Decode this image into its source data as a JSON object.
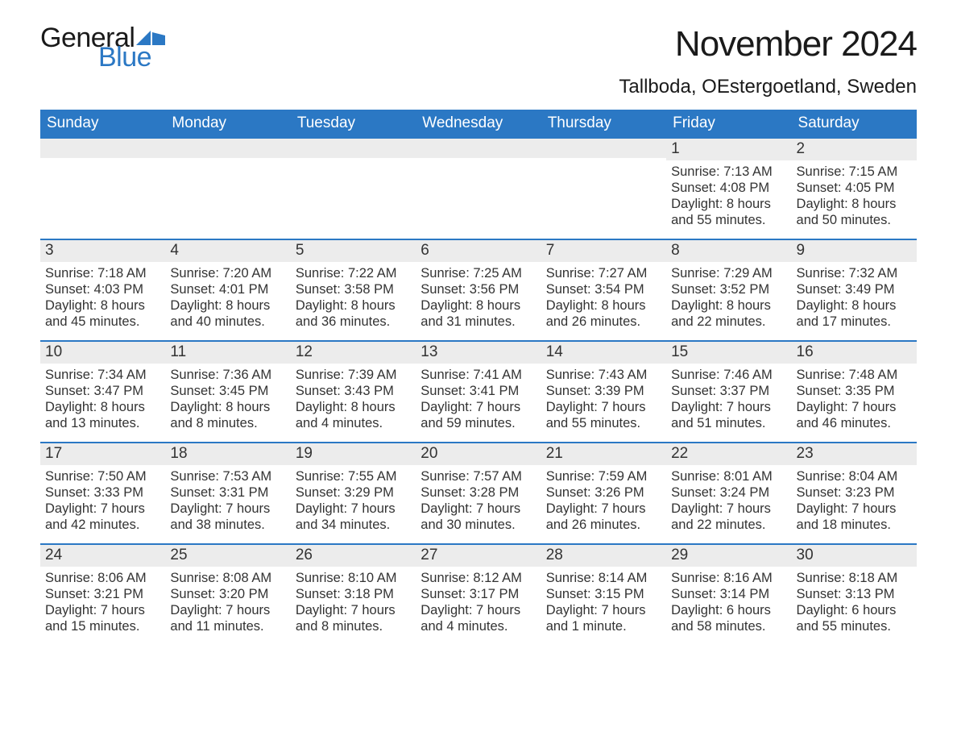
{
  "logo": {
    "general": "General",
    "blue": "Blue",
    "flag_color": "#2b78c4"
  },
  "title": "November 2024",
  "location": "Tallboda, OEstergoetland, Sweden",
  "colors": {
    "header_bg": "#2b78c4",
    "header_text": "#ffffff",
    "daynum_bg": "#ececec",
    "border": "#2b78c4",
    "text": "#333333",
    "background": "#ffffff"
  },
  "typography": {
    "title_fontsize": 44,
    "location_fontsize": 24,
    "header_fontsize": 19,
    "daynum_fontsize": 19,
    "body_fontsize": 16.5,
    "font_family": "Segoe UI, Arial, sans-serif"
  },
  "day_headers": [
    "Sunday",
    "Monday",
    "Tuesday",
    "Wednesday",
    "Thursday",
    "Friday",
    "Saturday"
  ],
  "weeks": [
    [
      {
        "n": "",
        "sunrise": "",
        "sunset": "",
        "daylight": ""
      },
      {
        "n": "",
        "sunrise": "",
        "sunset": "",
        "daylight": ""
      },
      {
        "n": "",
        "sunrise": "",
        "sunset": "",
        "daylight": ""
      },
      {
        "n": "",
        "sunrise": "",
        "sunset": "",
        "daylight": ""
      },
      {
        "n": "",
        "sunrise": "",
        "sunset": "",
        "daylight": ""
      },
      {
        "n": "1",
        "sunrise": "Sunrise: 7:13 AM",
        "sunset": "Sunset: 4:08 PM",
        "daylight": "Daylight: 8 hours and 55 minutes."
      },
      {
        "n": "2",
        "sunrise": "Sunrise: 7:15 AM",
        "sunset": "Sunset: 4:05 PM",
        "daylight": "Daylight: 8 hours and 50 minutes."
      }
    ],
    [
      {
        "n": "3",
        "sunrise": "Sunrise: 7:18 AM",
        "sunset": "Sunset: 4:03 PM",
        "daylight": "Daylight: 8 hours and 45 minutes."
      },
      {
        "n": "4",
        "sunrise": "Sunrise: 7:20 AM",
        "sunset": "Sunset: 4:01 PM",
        "daylight": "Daylight: 8 hours and 40 minutes."
      },
      {
        "n": "5",
        "sunrise": "Sunrise: 7:22 AM",
        "sunset": "Sunset: 3:58 PM",
        "daylight": "Daylight: 8 hours and 36 minutes."
      },
      {
        "n": "6",
        "sunrise": "Sunrise: 7:25 AM",
        "sunset": "Sunset: 3:56 PM",
        "daylight": "Daylight: 8 hours and 31 minutes."
      },
      {
        "n": "7",
        "sunrise": "Sunrise: 7:27 AM",
        "sunset": "Sunset: 3:54 PM",
        "daylight": "Daylight: 8 hours and 26 minutes."
      },
      {
        "n": "8",
        "sunrise": "Sunrise: 7:29 AM",
        "sunset": "Sunset: 3:52 PM",
        "daylight": "Daylight: 8 hours and 22 minutes."
      },
      {
        "n": "9",
        "sunrise": "Sunrise: 7:32 AM",
        "sunset": "Sunset: 3:49 PM",
        "daylight": "Daylight: 8 hours and 17 minutes."
      }
    ],
    [
      {
        "n": "10",
        "sunrise": "Sunrise: 7:34 AM",
        "sunset": "Sunset: 3:47 PM",
        "daylight": "Daylight: 8 hours and 13 minutes."
      },
      {
        "n": "11",
        "sunrise": "Sunrise: 7:36 AM",
        "sunset": "Sunset: 3:45 PM",
        "daylight": "Daylight: 8 hours and 8 minutes."
      },
      {
        "n": "12",
        "sunrise": "Sunrise: 7:39 AM",
        "sunset": "Sunset: 3:43 PM",
        "daylight": "Daylight: 8 hours and 4 minutes."
      },
      {
        "n": "13",
        "sunrise": "Sunrise: 7:41 AM",
        "sunset": "Sunset: 3:41 PM",
        "daylight": "Daylight: 7 hours and 59 minutes."
      },
      {
        "n": "14",
        "sunrise": "Sunrise: 7:43 AM",
        "sunset": "Sunset: 3:39 PM",
        "daylight": "Daylight: 7 hours and 55 minutes."
      },
      {
        "n": "15",
        "sunrise": "Sunrise: 7:46 AM",
        "sunset": "Sunset: 3:37 PM",
        "daylight": "Daylight: 7 hours and 51 minutes."
      },
      {
        "n": "16",
        "sunrise": "Sunrise: 7:48 AM",
        "sunset": "Sunset: 3:35 PM",
        "daylight": "Daylight: 7 hours and 46 minutes."
      }
    ],
    [
      {
        "n": "17",
        "sunrise": "Sunrise: 7:50 AM",
        "sunset": "Sunset: 3:33 PM",
        "daylight": "Daylight: 7 hours and 42 minutes."
      },
      {
        "n": "18",
        "sunrise": "Sunrise: 7:53 AM",
        "sunset": "Sunset: 3:31 PM",
        "daylight": "Daylight: 7 hours and 38 minutes."
      },
      {
        "n": "19",
        "sunrise": "Sunrise: 7:55 AM",
        "sunset": "Sunset: 3:29 PM",
        "daylight": "Daylight: 7 hours and 34 minutes."
      },
      {
        "n": "20",
        "sunrise": "Sunrise: 7:57 AM",
        "sunset": "Sunset: 3:28 PM",
        "daylight": "Daylight: 7 hours and 30 minutes."
      },
      {
        "n": "21",
        "sunrise": "Sunrise: 7:59 AM",
        "sunset": "Sunset: 3:26 PM",
        "daylight": "Daylight: 7 hours and 26 minutes."
      },
      {
        "n": "22",
        "sunrise": "Sunrise: 8:01 AM",
        "sunset": "Sunset: 3:24 PM",
        "daylight": "Daylight: 7 hours and 22 minutes."
      },
      {
        "n": "23",
        "sunrise": "Sunrise: 8:04 AM",
        "sunset": "Sunset: 3:23 PM",
        "daylight": "Daylight: 7 hours and 18 minutes."
      }
    ],
    [
      {
        "n": "24",
        "sunrise": "Sunrise: 8:06 AM",
        "sunset": "Sunset: 3:21 PM",
        "daylight": "Daylight: 7 hours and 15 minutes."
      },
      {
        "n": "25",
        "sunrise": "Sunrise: 8:08 AM",
        "sunset": "Sunset: 3:20 PM",
        "daylight": "Daylight: 7 hours and 11 minutes."
      },
      {
        "n": "26",
        "sunrise": "Sunrise: 8:10 AM",
        "sunset": "Sunset: 3:18 PM",
        "daylight": "Daylight: 7 hours and 8 minutes."
      },
      {
        "n": "27",
        "sunrise": "Sunrise: 8:12 AM",
        "sunset": "Sunset: 3:17 PM",
        "daylight": "Daylight: 7 hours and 4 minutes."
      },
      {
        "n": "28",
        "sunrise": "Sunrise: 8:14 AM",
        "sunset": "Sunset: 3:15 PM",
        "daylight": "Daylight: 7 hours and 1 minute."
      },
      {
        "n": "29",
        "sunrise": "Sunrise: 8:16 AM",
        "sunset": "Sunset: 3:14 PM",
        "daylight": "Daylight: 6 hours and 58 minutes."
      },
      {
        "n": "30",
        "sunrise": "Sunrise: 8:18 AM",
        "sunset": "Sunset: 3:13 PM",
        "daylight": "Daylight: 6 hours and 55 minutes."
      }
    ]
  ]
}
